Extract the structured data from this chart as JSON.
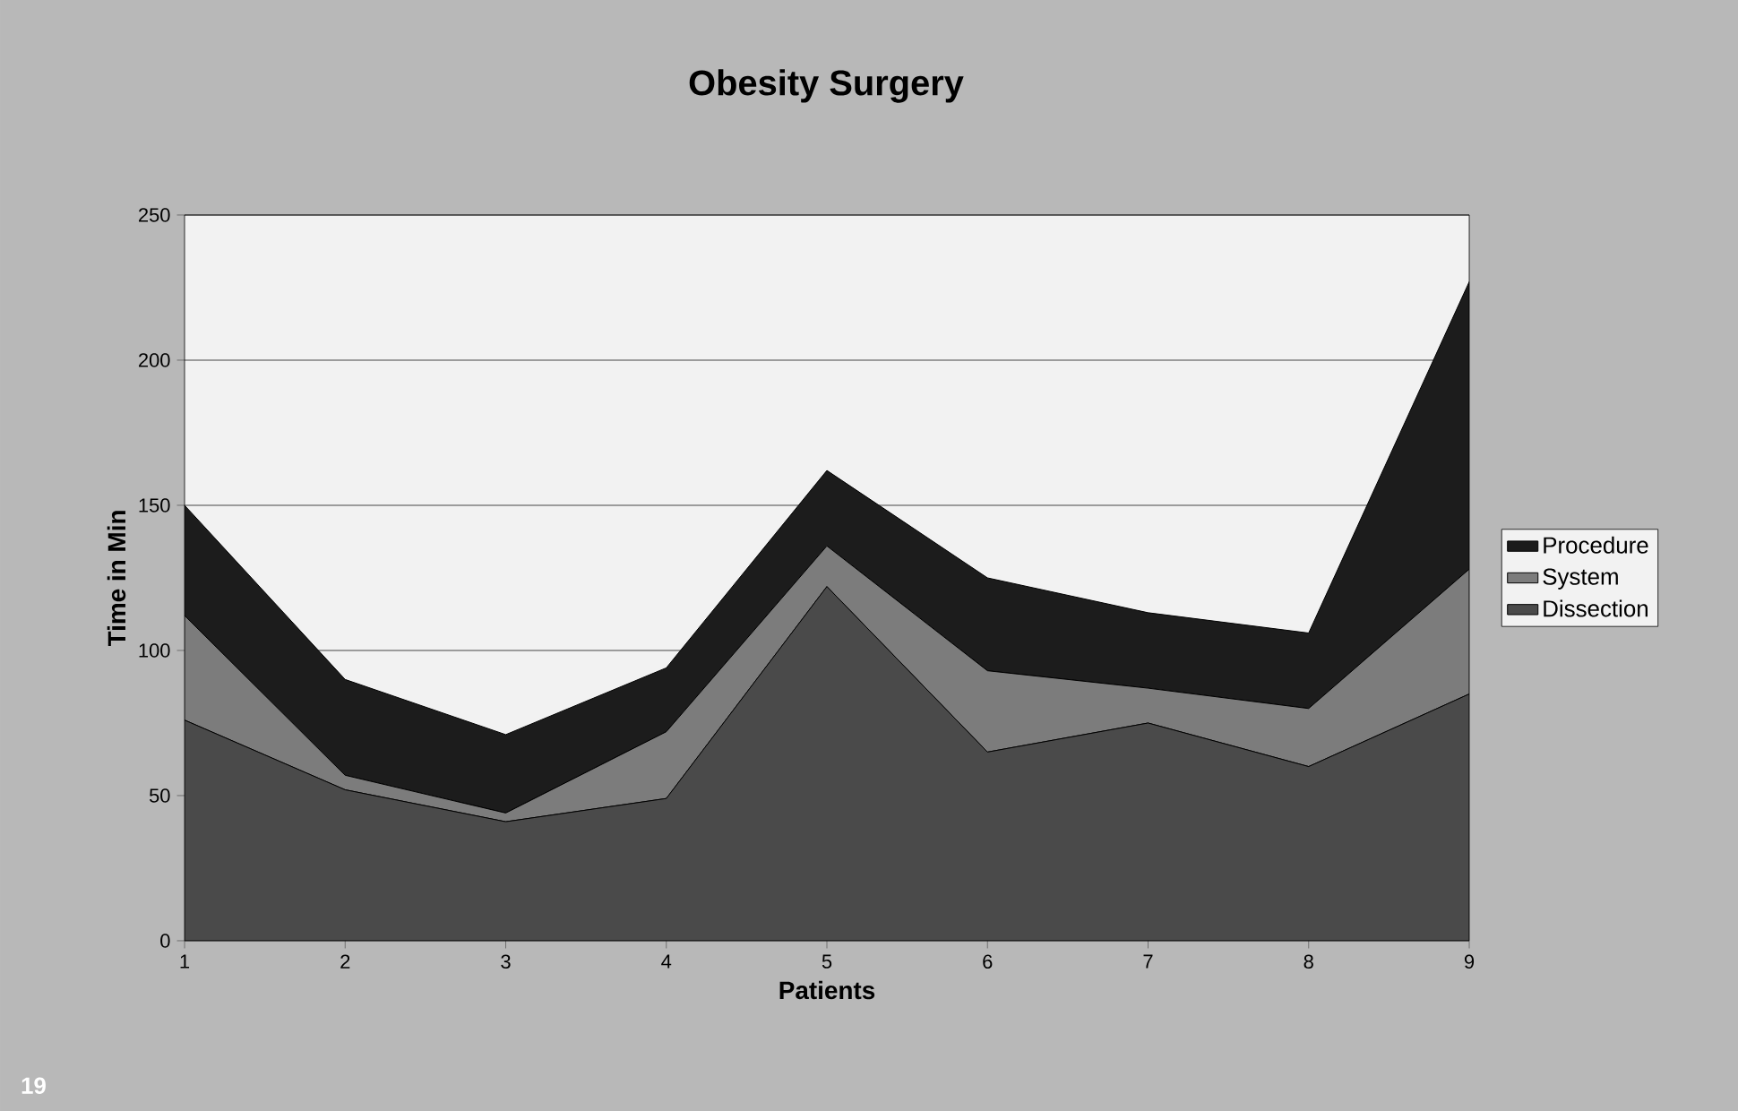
{
  "chart_data": {
    "type": "area",
    "title": "Obesity Surgery",
    "xlabel": "Patients",
    "ylabel": "Time in Min",
    "stacked": true,
    "x": [
      1,
      2,
      3,
      4,
      5,
      6,
      7,
      8,
      9
    ],
    "xlim": [
      1,
      9
    ],
    "xticks": [
      1,
      2,
      3,
      4,
      5,
      6,
      7,
      8,
      9
    ],
    "ylim": [
      0,
      250
    ],
    "yticks": [
      0,
      50,
      100,
      150,
      200,
      250
    ],
    "series": [
      {
        "name": "Dissection",
        "color": "#4a4a4a",
        "values": [
          76,
          52,
          41,
          49,
          122,
          65,
          75,
          60,
          85
        ]
      },
      {
        "name": "System",
        "color": "#7c7c7c",
        "values": [
          36,
          5,
          3,
          23,
          14,
          28,
          12,
          20,
          43
        ]
      },
      {
        "name": "Procedure",
        "color": "#1c1c1c",
        "values": [
          38,
          33,
          27,
          22,
          26,
          32,
          26,
          26,
          99
        ]
      }
    ],
    "grid": "y",
    "legend": "right",
    "annotations": [
      "19"
    ]
  }
}
